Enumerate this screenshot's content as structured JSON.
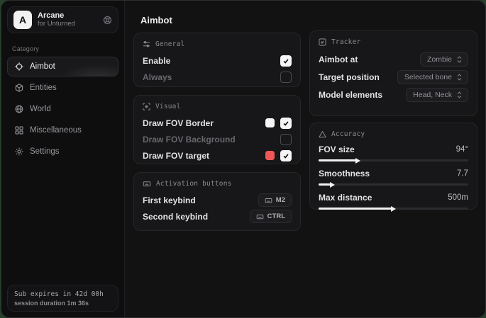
{
  "brand": {
    "logo_letter": "A",
    "name": "Arcane",
    "subtitle": "for Unturned"
  },
  "sidebar": {
    "category_label": "Category",
    "items": [
      {
        "label": "Aimbot",
        "icon": "crosshair-icon",
        "active": true
      },
      {
        "label": "Entities",
        "icon": "entities-icon",
        "active": false
      },
      {
        "label": "World",
        "icon": "globe-icon",
        "active": false
      },
      {
        "label": "Miscellaneous",
        "icon": "grid-icon",
        "active": false
      },
      {
        "label": "Settings",
        "icon": "gear-icon",
        "active": false
      }
    ],
    "footer": {
      "sub_expires": "Sub expires in 42d 00h",
      "session_duration": "session duration 1m 36s"
    }
  },
  "page": {
    "title": "Aimbot"
  },
  "cards": {
    "general": {
      "title": "General",
      "rows": [
        {
          "label": "Enable",
          "checked": true,
          "disabled": false
        },
        {
          "label": "Always",
          "checked": false,
          "disabled": true
        }
      ]
    },
    "visual": {
      "title": "Visual",
      "rows": [
        {
          "label": "Draw FOV Border",
          "swatch": "#f5f5f5",
          "checked": true
        },
        {
          "label": "Draw FOV Background",
          "checked": false
        },
        {
          "label": "Draw FOV target",
          "swatch": "#ee5757",
          "checked": true
        }
      ]
    },
    "activation": {
      "title": "Activation buttons",
      "rows": [
        {
          "label": "First keybind",
          "key": "M2"
        },
        {
          "label": "Second keybind",
          "key": "CTRL"
        }
      ]
    },
    "tracker": {
      "title": "Tracker",
      "rows": [
        {
          "label": "Aimbot at",
          "value": "Zombie"
        },
        {
          "label": "Target position",
          "value": "Selected bone"
        },
        {
          "label": "Model elements",
          "value": "Head, Neck"
        }
      ]
    },
    "accuracy": {
      "title": "Accuracy",
      "sliders": [
        {
          "label": "FOV size",
          "value": "94°",
          "fill_pct": 25
        },
        {
          "label": "Smoothness",
          "value": "7.7",
          "fill_pct": 8
        },
        {
          "label": "Max distance",
          "value": "500m",
          "fill_pct": 49
        }
      ]
    }
  },
  "colors": {
    "accent_red": "#ee5757",
    "swatch_white": "#f5f5f5",
    "slider_fill": "#f2f2f2"
  }
}
